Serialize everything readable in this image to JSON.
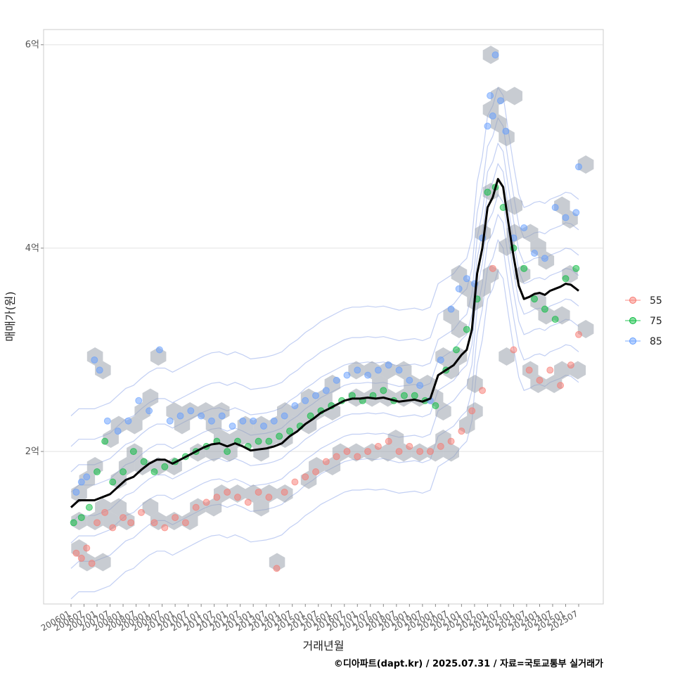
{
  "chart_data": {
    "type": "scatter",
    "xlabel": "거래년월",
    "ylabel": "매매가(원)",
    "caption": "©디아파트(dapt.kr) / 2025.07.31 / 자료=국토교통부 실거래가",
    "x_tick_labels": [
      "200601",
      "200607",
      "200701",
      "200707",
      "200801",
      "200807",
      "200901",
      "200907",
      "201001",
      "201007",
      "201101",
      "201107",
      "201201",
      "201207",
      "201301",
      "201307",
      "201401",
      "201407",
      "201501",
      "201507",
      "201601",
      "201607",
      "201701",
      "201707",
      "201801",
      "201807",
      "201901",
      "201907",
      "202001",
      "202007",
      "202101",
      "202107",
      "202201",
      "202207",
      "202301",
      "202307",
      "202401",
      "202407",
      "202501",
      "202507"
    ],
    "y_ticks": [
      {
        "value": 2,
        "label": "2억"
      },
      {
        "value": 4,
        "label": "4억"
      },
      {
        "value": 6,
        "label": "6억"
      }
    ],
    "y_unit": "억원",
    "ylim": [
      0.5,
      6.15
    ],
    "grid": true,
    "legend_position": "right",
    "series": [
      {
        "name": "55",
        "color": "#F8766D",
        "points": [
          [
            2006.2,
            1.0
          ],
          [
            2006.4,
            0.95
          ],
          [
            2006.6,
            1.05
          ],
          [
            2006.8,
            0.9
          ],
          [
            2007.0,
            1.3
          ],
          [
            2007.3,
            1.4
          ],
          [
            2007.6,
            1.25
          ],
          [
            2008.0,
            1.35
          ],
          [
            2008.3,
            1.3
          ],
          [
            2008.7,
            1.4
          ],
          [
            2009.2,
            1.3
          ],
          [
            2009.6,
            1.25
          ],
          [
            2010.0,
            1.35
          ],
          [
            2010.4,
            1.3
          ],
          [
            2010.8,
            1.45
          ],
          [
            2011.2,
            1.5
          ],
          [
            2011.6,
            1.55
          ],
          [
            2012.0,
            1.6
          ],
          [
            2012.4,
            1.55
          ],
          [
            2012.8,
            1.5
          ],
          [
            2013.2,
            1.6
          ],
          [
            2013.6,
            1.55
          ],
          [
            2013.9,
            0.85
          ],
          [
            2014.2,
            1.6
          ],
          [
            2014.6,
            1.7
          ],
          [
            2015.0,
            1.75
          ],
          [
            2015.4,
            1.8
          ],
          [
            2015.8,
            1.9
          ],
          [
            2016.2,
            1.95
          ],
          [
            2016.6,
            2.0
          ],
          [
            2017.0,
            1.95
          ],
          [
            2017.4,
            2.0
          ],
          [
            2017.8,
            2.05
          ],
          [
            2018.2,
            2.1
          ],
          [
            2018.6,
            2.0
          ],
          [
            2019.0,
            2.05
          ],
          [
            2019.4,
            2.0
          ],
          [
            2019.8,
            2.0
          ],
          [
            2020.2,
            2.05
          ],
          [
            2020.6,
            2.1
          ],
          [
            2021.0,
            2.2
          ],
          [
            2021.4,
            2.4
          ],
          [
            2021.8,
            2.6
          ],
          [
            2022.2,
            3.8
          ],
          [
            2023.0,
            3.0
          ],
          [
            2023.6,
            2.8
          ],
          [
            2024.0,
            2.7
          ],
          [
            2024.4,
            2.8
          ],
          [
            2024.8,
            2.65
          ],
          [
            2025.2,
            2.85
          ],
          [
            2025.5,
            3.15
          ]
        ]
      },
      {
        "name": "75",
        "color": "#00BA38",
        "points": [
          [
            2006.1,
            1.3
          ],
          [
            2006.4,
            1.35
          ],
          [
            2006.7,
            1.45
          ],
          [
            2007.0,
            1.8
          ],
          [
            2007.3,
            2.1
          ],
          [
            2007.6,
            1.7
          ],
          [
            2008.0,
            1.8
          ],
          [
            2008.4,
            2.0
          ],
          [
            2008.8,
            1.9
          ],
          [
            2009.2,
            1.8
          ],
          [
            2009.6,
            1.85
          ],
          [
            2010.0,
            1.9
          ],
          [
            2010.4,
            1.95
          ],
          [
            2010.8,
            2.0
          ],
          [
            2011.2,
            2.05
          ],
          [
            2011.6,
            2.1
          ],
          [
            2012.0,
            2.0
          ],
          [
            2012.4,
            2.1
          ],
          [
            2012.8,
            2.05
          ],
          [
            2013.2,
            2.1
          ],
          [
            2013.6,
            2.1
          ],
          [
            2014.0,
            2.15
          ],
          [
            2014.4,
            2.2
          ],
          [
            2014.8,
            2.25
          ],
          [
            2015.2,
            2.35
          ],
          [
            2015.6,
            2.4
          ],
          [
            2016.0,
            2.45
          ],
          [
            2016.4,
            2.5
          ],
          [
            2016.8,
            2.55
          ],
          [
            2017.2,
            2.5
          ],
          [
            2017.6,
            2.55
          ],
          [
            2018.0,
            2.6
          ],
          [
            2018.4,
            2.5
          ],
          [
            2018.8,
            2.55
          ],
          [
            2019.2,
            2.55
          ],
          [
            2019.6,
            2.5
          ],
          [
            2020.0,
            2.45
          ],
          [
            2020.4,
            2.8
          ],
          [
            2020.8,
            3.0
          ],
          [
            2021.2,
            3.2
          ],
          [
            2021.6,
            3.5
          ],
          [
            2022.0,
            4.55
          ],
          [
            2022.3,
            4.6
          ],
          [
            2022.6,
            4.4
          ],
          [
            2023.0,
            4.0
          ],
          [
            2023.4,
            3.8
          ],
          [
            2023.8,
            3.5
          ],
          [
            2024.2,
            3.4
          ],
          [
            2024.6,
            3.3
          ],
          [
            2025.0,
            3.7
          ],
          [
            2025.4,
            3.8
          ]
        ]
      },
      {
        "name": "85",
        "color": "#619CFF",
        "points": [
          [
            2006.2,
            1.6
          ],
          [
            2006.4,
            1.7
          ],
          [
            2006.6,
            1.75
          ],
          [
            2006.9,
            2.9
          ],
          [
            2007.1,
            2.8
          ],
          [
            2007.4,
            2.3
          ],
          [
            2007.8,
            2.2
          ],
          [
            2008.2,
            2.3
          ],
          [
            2008.6,
            2.5
          ],
          [
            2009.0,
            2.4
          ],
          [
            2009.4,
            3.0
          ],
          [
            2009.8,
            2.3
          ],
          [
            2010.2,
            2.35
          ],
          [
            2010.6,
            2.4
          ],
          [
            2011.0,
            2.35
          ],
          [
            2011.4,
            2.3
          ],
          [
            2011.8,
            2.35
          ],
          [
            2012.2,
            2.25
          ],
          [
            2012.6,
            2.3
          ],
          [
            2013.0,
            2.3
          ],
          [
            2013.4,
            2.25
          ],
          [
            2013.8,
            2.3
          ],
          [
            2014.2,
            2.35
          ],
          [
            2014.6,
            2.45
          ],
          [
            2015.0,
            2.5
          ],
          [
            2015.4,
            2.55
          ],
          [
            2015.8,
            2.6
          ],
          [
            2016.2,
            2.7
          ],
          [
            2016.6,
            2.75
          ],
          [
            2017.0,
            2.8
          ],
          [
            2017.4,
            2.75
          ],
          [
            2017.8,
            2.8
          ],
          [
            2018.2,
            2.85
          ],
          [
            2018.6,
            2.8
          ],
          [
            2019.0,
            2.7
          ],
          [
            2019.4,
            2.65
          ],
          [
            2019.8,
            2.5
          ],
          [
            2020.2,
            2.9
          ],
          [
            2020.6,
            3.4
          ],
          [
            2020.9,
            3.6
          ],
          [
            2021.2,
            3.7
          ],
          [
            2021.5,
            3.65
          ],
          [
            2021.8,
            4.1
          ],
          [
            2022.0,
            5.2
          ],
          [
            2022.1,
            5.5
          ],
          [
            2022.2,
            5.3
          ],
          [
            2022.3,
            5.9
          ],
          [
            2022.5,
            5.45
          ],
          [
            2022.7,
            5.15
          ],
          [
            2023.0,
            4.1
          ],
          [
            2023.4,
            4.2
          ],
          [
            2023.8,
            3.95
          ],
          [
            2024.2,
            3.9
          ],
          [
            2024.6,
            4.4
          ],
          [
            2025.0,
            4.3
          ],
          [
            2025.4,
            4.35
          ],
          [
            2025.5,
            4.8
          ]
        ]
      }
    ],
    "trend_line": {
      "color": "#000000",
      "x": [
        2006.0,
        2006.3,
        2006.6,
        2006.9,
        2007.2,
        2007.5,
        2007.8,
        2008.1,
        2008.4,
        2008.7,
        2009.0,
        2009.3,
        2009.6,
        2009.9,
        2010.2,
        2010.5,
        2010.8,
        2011.1,
        2011.4,
        2011.7,
        2012.0,
        2012.3,
        2012.6,
        2012.9,
        2013.2,
        2013.5,
        2013.8,
        2014.1,
        2014.4,
        2014.7,
        2015.0,
        2015.3,
        2015.6,
        2015.9,
        2016.2,
        2016.5,
        2016.8,
        2017.1,
        2017.4,
        2017.7,
        2018.0,
        2018.3,
        2018.6,
        2018.9,
        2019.2,
        2019.5,
        2019.8,
        2020.1,
        2020.4,
        2020.7,
        2021.0,
        2021.2,
        2021.4,
        2021.6,
        2021.8,
        2022.0,
        2022.2,
        2022.4,
        2022.6,
        2022.8,
        2023.0,
        2023.2,
        2023.4,
        2023.6,
        2023.8,
        2024.0,
        2024.2,
        2024.4,
        2024.6,
        2024.8,
        2025.0,
        2025.2,
        2025.4,
        2025.5
      ],
      "y": [
        1.45,
        1.52,
        1.52,
        1.52,
        1.55,
        1.58,
        1.65,
        1.72,
        1.75,
        1.82,
        1.88,
        1.92,
        1.92,
        1.88,
        1.92,
        1.96,
        2.0,
        2.04,
        2.07,
        2.08,
        2.05,
        2.08,
        2.05,
        2.01,
        2.02,
        2.03,
        2.05,
        2.08,
        2.15,
        2.2,
        2.27,
        2.32,
        2.38,
        2.42,
        2.46,
        2.5,
        2.52,
        2.52,
        2.53,
        2.52,
        2.53,
        2.51,
        2.49,
        2.5,
        2.51,
        2.49,
        2.52,
        2.75,
        2.8,
        2.85,
        2.95,
        3.0,
        3.2,
        3.75,
        4.0,
        4.4,
        4.5,
        4.68,
        4.6,
        4.25,
        3.92,
        3.63,
        3.5,
        3.52,
        3.55,
        3.56,
        3.54,
        3.58,
        3.6,
        3.62,
        3.65,
        3.64,
        3.6,
        3.58
      ]
    },
    "hexbin": true,
    "density_contours": true
  }
}
